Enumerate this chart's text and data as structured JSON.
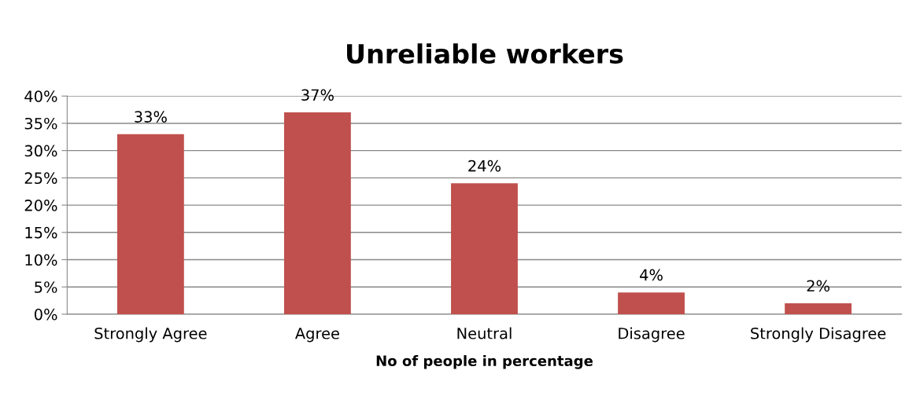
{
  "chart_data": {
    "type": "bar",
    "title": "Unreliable workers",
    "xlabel": "No of people in percentage",
    "categories": [
      "Strongly Agree",
      "Agree",
      "Neutral",
      "Disagree",
      "Strongly Disagree"
    ],
    "values": [
      33,
      37,
      24,
      4,
      2
    ],
    "value_labels": [
      "33%",
      "37%",
      "24%",
      "4%",
      "2%"
    ],
    "color": "#c0504d",
    "ylim": [
      0,
      40
    ],
    "yticks": [
      {
        "value": 0,
        "label": "0%"
      },
      {
        "value": 5,
        "label": "5%"
      },
      {
        "value": 10,
        "label": "10%"
      },
      {
        "value": 15,
        "label": "15%"
      },
      {
        "value": 20,
        "label": "20%"
      },
      {
        "value": 25,
        "label": "25%"
      },
      {
        "value": 30,
        "label": "30%"
      },
      {
        "value": 35,
        "label": "35%"
      },
      {
        "value": 40,
        "label": "40%"
      }
    ],
    "grid": "y",
    "legend": false
  }
}
